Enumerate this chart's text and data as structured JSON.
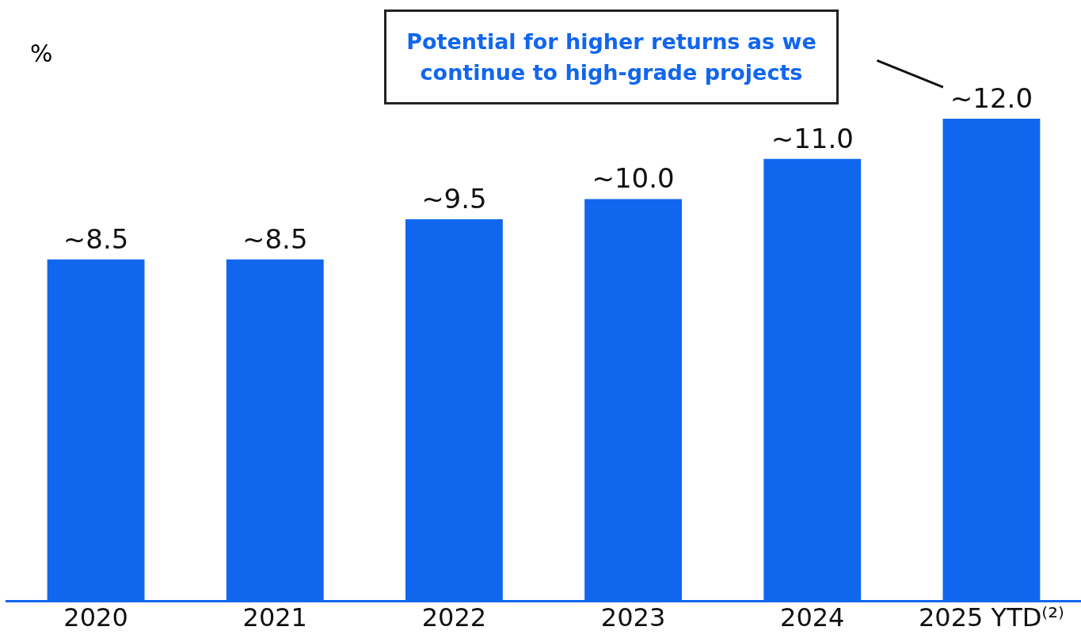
{
  "chart_data": {
    "type": "bar",
    "ylabel": "%",
    "categories": [
      "2020",
      "2021",
      "2022",
      "2023",
      "2024",
      "2025 YTD⁽²⁾"
    ],
    "values": [
      8.5,
      8.5,
      9.5,
      10.0,
      11.0,
      12.0
    ],
    "value_labels": [
      "~8.5",
      "~8.5",
      "~9.5",
      "~10.0",
      "~11.0",
      "~12.0"
    ],
    "color": "#1166ee",
    "annotations": [
      "Potential for higher returns as we continue to high-grade projects"
    ],
    "grid": false,
    "legend": false
  }
}
